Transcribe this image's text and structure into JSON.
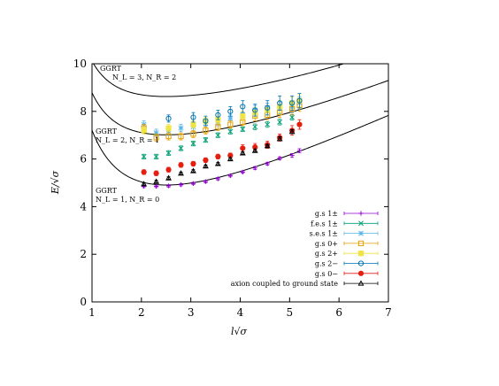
{
  "chart_data": {
    "type": "scatter",
    "xlabel": "l√σ",
    "ylabel": "E/√σ",
    "xlim": [
      1,
      7
    ],
    "ylim": [
      0,
      10
    ],
    "x_ticks": [
      "1",
      "2",
      "3",
      "4",
      "5",
      "6",
      "7"
    ],
    "y_ticks": [
      "0",
      "2",
      "4",
      "6",
      "8",
      "10"
    ],
    "legend_position": "bottom-right",
    "curves": [
      {
        "label_top": "GGRT",
        "label_bottom": "N_L = 1, N_R = 0",
        "nl": 1,
        "nr": 0
      },
      {
        "label_top": "GGRT",
        "label_bottom": "N_L = 2, N_R = 1",
        "nl": 2,
        "nr": 1
      },
      {
        "label_top": "GGRT",
        "label_bottom": "N_L = 3, N_R = 2",
        "nl": 3,
        "nr": 2
      }
    ],
    "series": [
      {
        "name": "g.s 1±",
        "marker": "plus",
        "color": "#9400d3",
        "points": [
          [
            2.05,
            4.85,
            0.05
          ],
          [
            2.3,
            4.85,
            0.05
          ],
          [
            2.55,
            4.87,
            0.05
          ],
          [
            2.8,
            4.92,
            0.05
          ],
          [
            3.05,
            4.97,
            0.05
          ],
          [
            3.3,
            5.05,
            0.05
          ],
          [
            3.55,
            5.17,
            0.05
          ],
          [
            3.8,
            5.3,
            0.05
          ],
          [
            4.05,
            5.45,
            0.05
          ],
          [
            4.3,
            5.62,
            0.06
          ],
          [
            4.55,
            5.8,
            0.06
          ],
          [
            4.8,
            6.03,
            0.06
          ],
          [
            5.05,
            6.15,
            0.08
          ],
          [
            5.2,
            6.35,
            0.08
          ]
        ]
      },
      {
        "name": "f.e.s 1±",
        "marker": "x",
        "color": "#009e73",
        "points": [
          [
            2.05,
            6.1,
            0.1
          ],
          [
            2.3,
            6.1,
            0.1
          ],
          [
            2.55,
            6.25,
            0.1
          ],
          [
            2.8,
            6.45,
            0.1
          ],
          [
            3.05,
            6.65,
            0.1
          ],
          [
            3.3,
            6.8,
            0.1
          ],
          [
            3.55,
            7.0,
            0.1
          ],
          [
            3.8,
            7.15,
            0.1
          ],
          [
            4.05,
            7.25,
            0.1
          ],
          [
            4.3,
            7.35,
            0.12
          ],
          [
            4.55,
            7.45,
            0.12
          ],
          [
            4.8,
            7.55,
            0.12
          ],
          [
            5.05,
            7.75,
            0.12
          ]
        ]
      },
      {
        "name": "s.e.s 1±",
        "marker": "star",
        "color": "#56b4e9",
        "points": [
          [
            2.05,
            7.45,
            0.15
          ],
          [
            2.3,
            7.1,
            0.15
          ],
          [
            2.55,
            7.15,
            0.15
          ],
          [
            2.8,
            7.3,
            0.15
          ],
          [
            3.05,
            7.35,
            0.15
          ],
          [
            3.3,
            7.5,
            0.15
          ],
          [
            3.55,
            7.55,
            0.15
          ],
          [
            3.8,
            7.7,
            0.15
          ],
          [
            4.05,
            7.85,
            0.15
          ],
          [
            4.3,
            8.05,
            0.2
          ],
          [
            4.55,
            8.15,
            0.2
          ],
          [
            4.8,
            8.15,
            0.25
          ],
          [
            5.05,
            8.2,
            0.25
          ],
          [
            5.2,
            8.35,
            0.25
          ]
        ]
      },
      {
        "name": "g.s 0+",
        "marker": "open-square",
        "color": "#e69f00",
        "points": [
          [
            2.05,
            7.3,
            0.15
          ],
          [
            2.3,
            6.9,
            0.15
          ],
          [
            2.55,
            6.95,
            0.15
          ],
          [
            2.8,
            6.95,
            0.15
          ],
          [
            3.05,
            7.05,
            0.15
          ],
          [
            3.3,
            7.2,
            0.15
          ],
          [
            3.55,
            7.35,
            0.15
          ],
          [
            3.8,
            7.45,
            0.15
          ],
          [
            4.05,
            7.55,
            0.15
          ],
          [
            4.3,
            7.8,
            0.2
          ],
          [
            4.55,
            7.85,
            0.2
          ],
          [
            4.8,
            7.95,
            0.2
          ],
          [
            5.05,
            8.1,
            0.25
          ],
          [
            5.2,
            8.25,
            0.25
          ]
        ]
      },
      {
        "name": "g.s 2+",
        "marker": "filled-square",
        "color": "#f0e442",
        "points": [
          [
            2.05,
            7.2,
            0.15
          ],
          [
            2.55,
            7.3,
            0.15
          ],
          [
            3.05,
            7.45,
            0.15
          ],
          [
            3.3,
            7.6,
            0.15
          ],
          [
            3.55,
            7.65,
            0.15
          ],
          [
            4.05,
            7.8,
            0.2
          ],
          [
            4.3,
            7.95,
            0.2
          ],
          [
            4.55,
            8.05,
            0.2
          ],
          [
            4.8,
            8.2,
            0.25
          ],
          [
            5.05,
            8.35,
            0.25
          ],
          [
            5.2,
            8.45,
            0.25
          ]
        ]
      },
      {
        "name": "g.s 2−",
        "marker": "open-circle",
        "color": "#0072b2",
        "points": [
          [
            2.55,
            7.7,
            0.15
          ],
          [
            3.05,
            7.75,
            0.2
          ],
          [
            3.3,
            7.6,
            0.2
          ],
          [
            3.55,
            7.85,
            0.2
          ],
          [
            3.8,
            8.0,
            0.2
          ],
          [
            4.05,
            8.2,
            0.25
          ],
          [
            4.3,
            8.05,
            0.25
          ],
          [
            4.55,
            8.15,
            0.3
          ],
          [
            4.8,
            8.35,
            0.3
          ],
          [
            5.05,
            8.35,
            0.3
          ],
          [
            5.2,
            8.45,
            0.3
          ]
        ]
      },
      {
        "name": "g.s 0−",
        "marker": "filled-circle",
        "color": "#e51e10",
        "points": [
          [
            2.05,
            5.45,
            0.1
          ],
          [
            2.3,
            5.4,
            0.1
          ],
          [
            2.55,
            5.55,
            0.1
          ],
          [
            2.8,
            5.75,
            0.1
          ],
          [
            3.05,
            5.8,
            0.1
          ],
          [
            3.3,
            5.95,
            0.1
          ],
          [
            3.55,
            6.1,
            0.1
          ],
          [
            3.8,
            6.15,
            0.1
          ],
          [
            4.05,
            6.45,
            0.15
          ],
          [
            4.3,
            6.5,
            0.15
          ],
          [
            4.55,
            6.6,
            0.15
          ],
          [
            4.8,
            6.9,
            0.15
          ],
          [
            5.05,
            7.2,
            0.2
          ],
          [
            5.2,
            7.45,
            0.2
          ]
        ]
      },
      {
        "name": "axion coupled to ground state",
        "marker": "open-triangle",
        "color": "#000000",
        "points": [
          [
            2.05,
            4.95,
            0.05
          ],
          [
            2.3,
            5.05,
            0.05
          ],
          [
            2.55,
            5.2,
            0.05
          ],
          [
            2.8,
            5.4,
            0.05
          ],
          [
            3.05,
            5.5,
            0.05
          ],
          [
            3.3,
            5.7,
            0.05
          ],
          [
            3.55,
            5.8,
            0.05
          ],
          [
            3.8,
            6.0,
            0.05
          ],
          [
            4.05,
            6.25,
            0.05
          ],
          [
            4.3,
            6.35,
            0.05
          ],
          [
            4.55,
            6.55,
            0.05
          ],
          [
            4.8,
            6.85,
            0.08
          ],
          [
            5.05,
            7.15,
            0.08
          ]
        ]
      }
    ]
  }
}
